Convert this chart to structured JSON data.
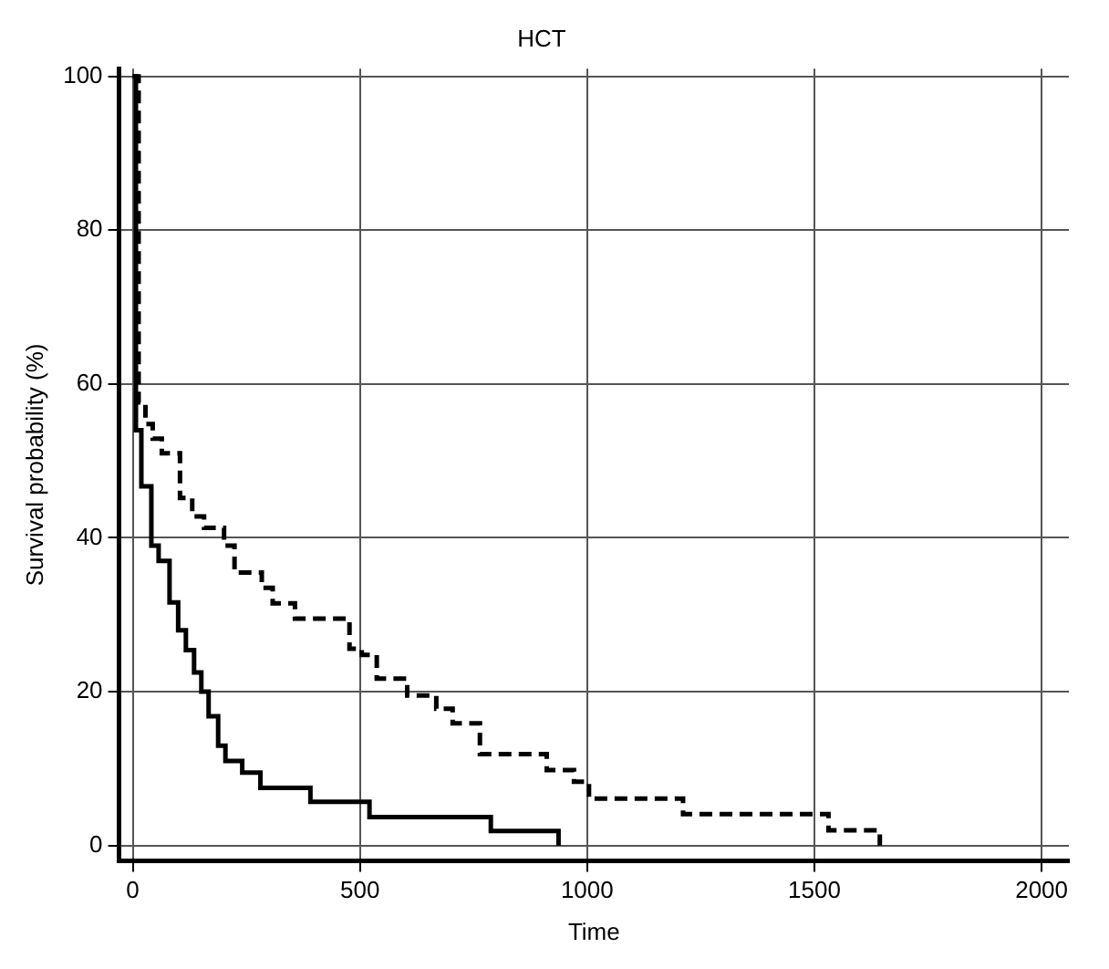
{
  "chart_data": {
    "type": "step",
    "title": "HCT",
    "xlabel": "Time",
    "ylabel": "Survival probability (%)",
    "xlim": [
      -30,
      2060
    ],
    "ylim": [
      -2,
      101
    ],
    "xticks": [
      0,
      500,
      1000,
      1500,
      2000
    ],
    "yticks": [
      0,
      20,
      40,
      60,
      80,
      100
    ],
    "grid": true,
    "legend": false,
    "marker": "none",
    "series": [
      {
        "color": "#000000",
        "line_style": "solid",
        "x": [
          0,
          7,
          19,
          41,
          57,
          81,
          100,
          117,
          135,
          151,
          167,
          188,
          204,
          241,
          281,
          391,
          521,
          788,
          937
        ],
        "values": [
          100,
          54,
          46.7,
          39,
          37,
          31.6,
          28,
          25.4,
          22.5,
          20,
          16.8,
          13,
          11,
          9.5,
          7.5,
          5.7,
          3.7,
          1.9,
          0
        ]
      },
      {
        "color": "#000000",
        "line_style": "dashed",
        "x": [
          0,
          13,
          28,
          44,
          64,
          104,
          131,
          157,
          201,
          224,
          284,
          308,
          357,
          477,
          504,
          537,
          604,
          668,
          704,
          764,
          911,
          971,
          1004,
          1211,
          1531,
          1644
        ],
        "values": [
          100,
          57.6,
          54.8,
          52.9,
          51,
          45.2,
          42.8,
          41.3,
          39,
          35.5,
          33.5,
          31.5,
          29.5,
          25.6,
          24.8,
          21.7,
          19.5,
          17.8,
          15.9,
          11.9,
          9.8,
          8.3,
          6.1,
          4.1,
          2,
          0
        ]
      }
    ]
  }
}
